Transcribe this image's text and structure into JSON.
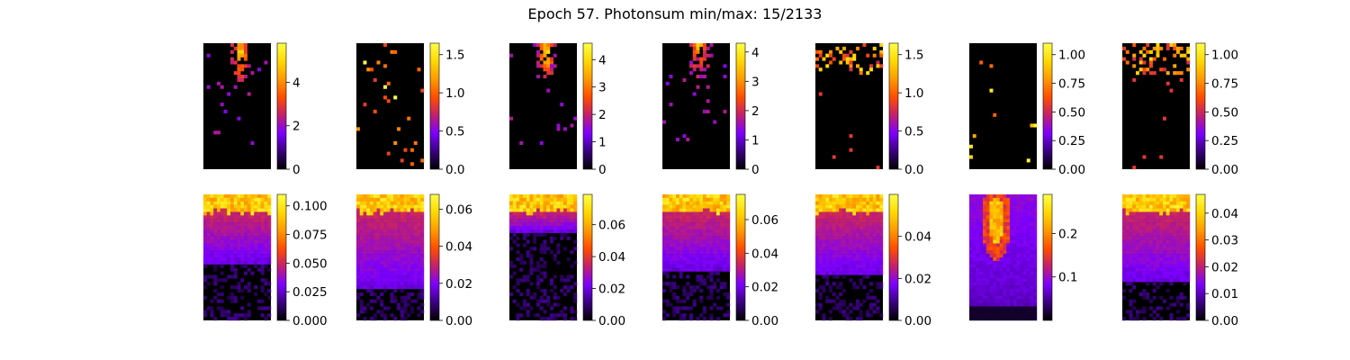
{
  "title": "Epoch 57. Photonsum min/max: 15/2133",
  "colormap": [
    "#000000",
    "#3a0080",
    "#7d00ff",
    "#c2206e",
    "#ff4d00",
    "#ff9a00",
    "#ffd800",
    "#ffff4a"
  ],
  "chart_data": {
    "type": "heatmap",
    "layout": "2 rows x 7 columns",
    "colormap_name": "gnuplot",
    "panels": [
      {
        "row": 1,
        "col": 1,
        "vmin": 0,
        "vmax": 5.8,
        "ticks": [
          "0",
          "2",
          "4"
        ],
        "tick_values": [
          0,
          2,
          4
        ],
        "pattern": "hotspot",
        "spot": [
          0.55,
          0.08
        ]
      },
      {
        "row": 1,
        "col": 2,
        "vmin": 0,
        "vmax": 1.65,
        "ticks": [
          "0.0",
          "0.5",
          "1.0",
          "1.5"
        ],
        "tick_values": [
          0,
          0.5,
          1.0,
          1.5
        ],
        "pattern": "sparse-dots",
        "density": 0.05
      },
      {
        "row": 1,
        "col": 3,
        "vmin": 0,
        "vmax": 4.6,
        "ticks": [
          "0",
          "1",
          "2",
          "3",
          "4"
        ],
        "tick_values": [
          0,
          1,
          2,
          3,
          4
        ],
        "pattern": "hotspot",
        "spot": [
          0.55,
          0.08
        ]
      },
      {
        "row": 1,
        "col": 4,
        "vmin": 0,
        "vmax": 4.3,
        "ticks": [
          "0",
          "1",
          "2",
          "3",
          "4"
        ],
        "tick_values": [
          0,
          1,
          2,
          3,
          4
        ],
        "pattern": "hotspot",
        "spot": [
          0.55,
          0.0
        ]
      },
      {
        "row": 1,
        "col": 5,
        "vmin": 0,
        "vmax": 1.65,
        "ticks": [
          "0.0",
          "0.5",
          "1.0",
          "1.5"
        ],
        "tick_values": [
          0,
          0.5,
          1.0,
          1.5
        ],
        "pattern": "top-dots",
        "density": 0.08
      },
      {
        "row": 1,
        "col": 6,
        "vmin": 0,
        "vmax": 1.1,
        "ticks": [
          "0.00",
          "0.25",
          "0.50",
          "0.75",
          "1.00"
        ],
        "tick_values": [
          0,
          0.25,
          0.5,
          0.75,
          1.0
        ],
        "pattern": "few-dots",
        "density": 0.02
      },
      {
        "row": 1,
        "col": 7,
        "vmin": 0,
        "vmax": 1.1,
        "ticks": [
          "0.00",
          "0.25",
          "0.50",
          "0.75",
          "1.00"
        ],
        "tick_values": [
          0,
          0.25,
          0.5,
          0.75,
          1.0
        ],
        "pattern": "top-dots",
        "density": 0.12
      },
      {
        "row": 2,
        "col": 1,
        "vmin": 0,
        "vmax": 0.11,
        "ticks": [
          "0.000",
          "0.025",
          "0.050",
          "0.075",
          "0.100"
        ],
        "tick_values": [
          0,
          0.025,
          0.05,
          0.075,
          0.1
        ],
        "pattern": "gradient",
        "depth": 0.55
      },
      {
        "row": 2,
        "col": 2,
        "vmin": 0,
        "vmax": 0.068,
        "ticks": [
          "0.00",
          "0.02",
          "0.04",
          "0.06"
        ],
        "tick_values": [
          0,
          0.02,
          0.04,
          0.06
        ],
        "pattern": "gradient",
        "depth": 0.75
      },
      {
        "row": 2,
        "col": 3,
        "vmin": 0,
        "vmax": 0.079,
        "ticks": [
          "0.00",
          "0.02",
          "0.04",
          "0.06"
        ],
        "tick_values": [
          0,
          0.02,
          0.04,
          0.06
        ],
        "pattern": "gradient",
        "depth": 0.3
      },
      {
        "row": 2,
        "col": 4,
        "vmin": 0,
        "vmax": 0.075,
        "ticks": [
          "0.00",
          "0.02",
          "0.04",
          "0.06"
        ],
        "tick_values": [
          0,
          0.02,
          0.04,
          0.06
        ],
        "pattern": "gradient",
        "depth": 0.6
      },
      {
        "row": 2,
        "col": 5,
        "vmin": 0,
        "vmax": 0.06,
        "ticks": [
          "0.00",
          "0.02",
          "0.04"
        ],
        "tick_values": [
          0,
          0.02,
          0.04
        ],
        "pattern": "gradient",
        "depth": 0.65
      },
      {
        "row": 2,
        "col": 6,
        "vmin": 0,
        "vmax": 0.29,
        "ticks": [
          "0.1",
          "0.2"
        ],
        "tick_values": [
          0.1,
          0.2
        ],
        "pattern": "blob",
        "depth": 0.9
      },
      {
        "row": 2,
        "col": 7,
        "vmin": 0,
        "vmax": 0.047,
        "ticks": [
          "0.00",
          "0.01",
          "0.02",
          "0.03",
          "0.04"
        ],
        "tick_values": [
          0,
          0.01,
          0.02,
          0.03,
          0.04
        ],
        "pattern": "gradient",
        "depth": 0.7
      }
    ]
  }
}
